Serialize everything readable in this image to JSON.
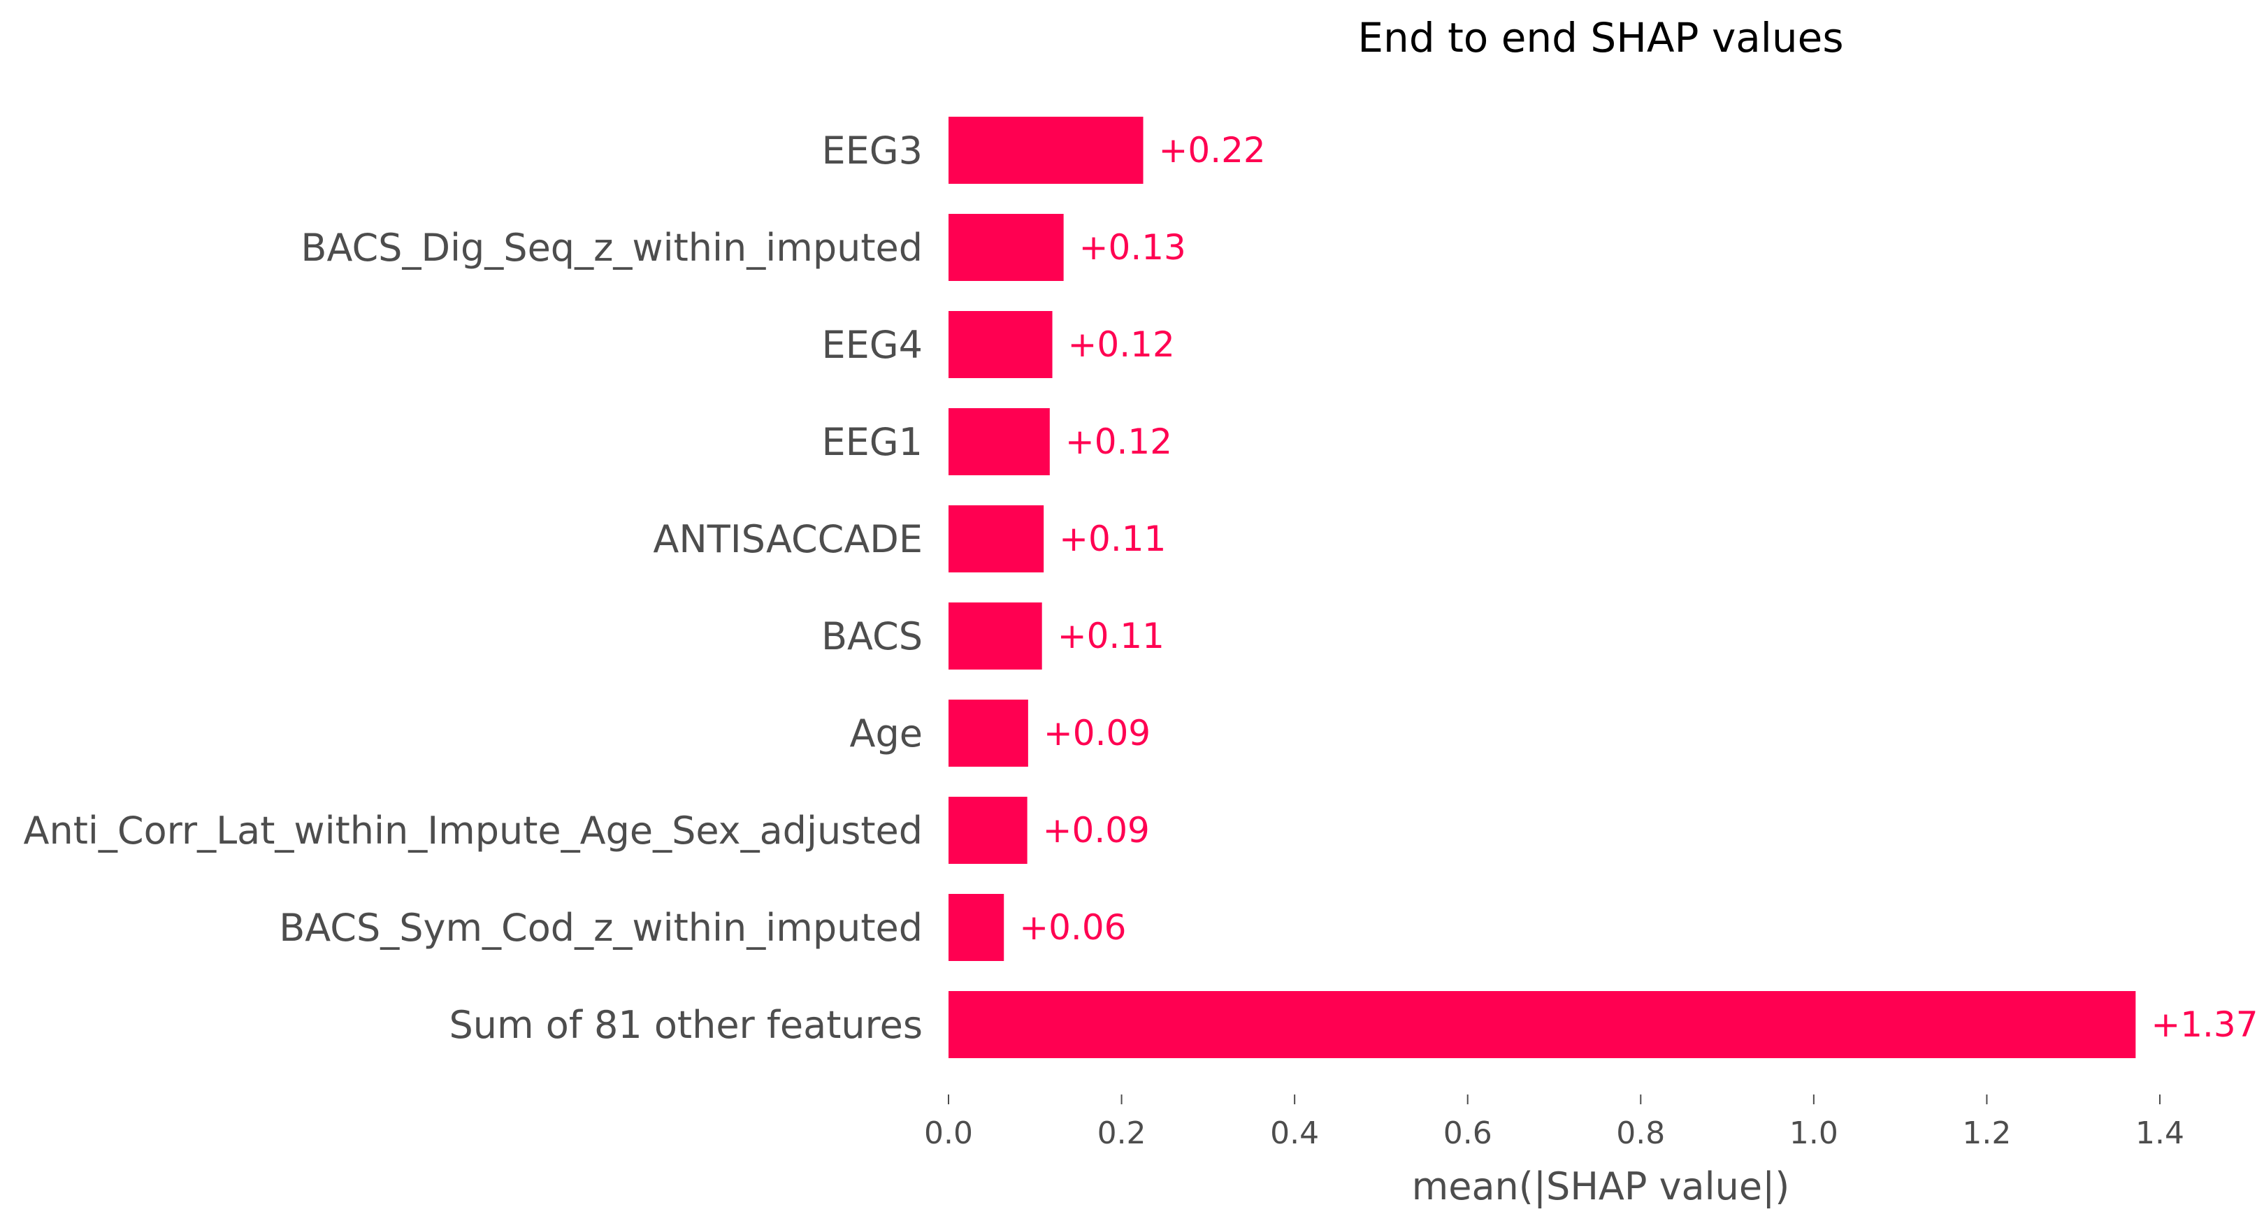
{
  "chart_data": {
    "type": "bar",
    "orientation": "horizontal",
    "title": "End to end SHAP values",
    "xlabel": "mean(|SHAP value|)",
    "ylabel": "",
    "xlim": [
      0,
      1.4
    ],
    "xticks": [
      "0.0",
      "0.2",
      "0.4",
      "0.6",
      "0.8",
      "1.0",
      "1.2",
      "1.4"
    ],
    "grid": false,
    "bar_color": "#ff0051",
    "label_color": "#ff0051",
    "text_color": "#4d4d4d",
    "categories": [
      "EEG3",
      "BACS_Dig_Seq_z_within_imputed",
      "EEG4",
      "EEG1",
      "ANTISACCADE",
      "BACS",
      "Age",
      "Anti_Corr_Lat_within_Impute_Age_Sex_adjusted",
      "BACS_Sym_Cod_z_within_imputed",
      "Sum of 81 other features"
    ],
    "values": [
      0.225,
      0.133,
      0.12,
      0.117,
      0.11,
      0.108,
      0.092,
      0.091,
      0.064,
      1.372
    ],
    "data_labels": [
      "+0.22",
      "+0.13",
      "+0.12",
      "+0.12",
      "+0.11",
      "+0.11",
      "+0.09",
      "+0.09",
      "+0.06",
      "+1.37"
    ]
  }
}
